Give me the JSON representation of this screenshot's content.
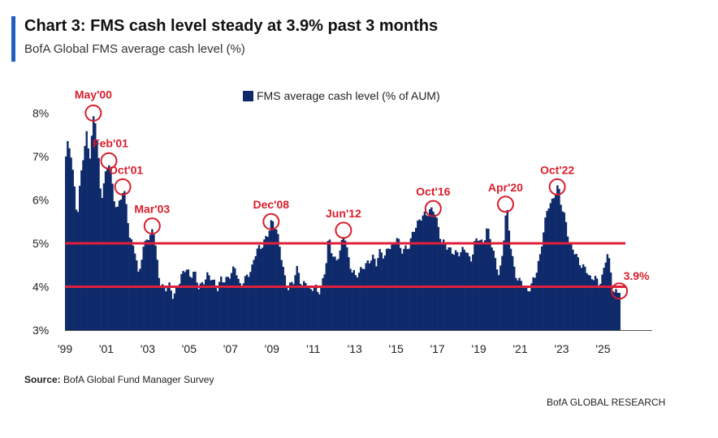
{
  "header": {
    "title": "Chart 3: FMS cash level steady at 3.9% past 3 months",
    "subtitle": "BofA Global FMS average cash level (%)"
  },
  "footer": {
    "source_label": "Source:",
    "source_text": "BofA Global Fund Manager Survey",
    "brand": "BofA GLOBAL RESEARCH"
  },
  "colors": {
    "bars": "#0f2a6b",
    "reference_lines": "#e0203a",
    "annotations": "#d81e2c",
    "accent": "#1f5fbf"
  },
  "chart_data": {
    "type": "bar",
    "title": "Chart 3: FMS cash level steady at 3.9% past 3 months",
    "subtitle": "BofA Global FMS average cash level (%)",
    "legend": {
      "label": "FMS average cash level (% of AUM)",
      "position": "top-center"
    },
    "xlabel": "",
    "ylabel": "",
    "ylim": [
      3,
      8.4
    ],
    "yticks": [
      3,
      4,
      5,
      6,
      7,
      8
    ],
    "ytick_labels": [
      "3%",
      "4%",
      "5%",
      "6%",
      "7%",
      "8%"
    ],
    "xlim": [
      1999.0,
      2026.2
    ],
    "xticks": [
      1999,
      2001,
      2003,
      2005,
      2007,
      2009,
      2011,
      2013,
      2015,
      2017,
      2019,
      2021,
      2023,
      2025
    ],
    "xtick_labels": [
      "'99",
      "'01",
      "'03",
      "'05",
      "'07",
      "'09",
      "'11",
      "'13",
      "'15",
      "'17",
      "'19",
      "'21",
      "'23",
      "'25"
    ],
    "grid": false,
    "reference_lines": [
      5.0,
      4.0
    ],
    "annotations": [
      {
        "label": "May'00",
        "x": 2000.37,
        "y": 8.0
      },
      {
        "label": "Feb'01",
        "x": 2001.12,
        "y": 6.9
      },
      {
        "label": "Oct'01",
        "x": 2001.79,
        "y": 6.3
      },
      {
        "label": "Mar'03",
        "x": 2003.21,
        "y": 5.4
      },
      {
        "label": "Dec'08",
        "x": 2008.96,
        "y": 5.5
      },
      {
        "label": "Jun'12",
        "x": 2012.46,
        "y": 5.3
      },
      {
        "label": "Oct'16",
        "x": 2016.79,
        "y": 5.8
      },
      {
        "label": "Apr'20",
        "x": 2020.29,
        "y": 5.9
      },
      {
        "label": "Oct'22",
        "x": 2022.79,
        "y": 6.3
      },
      {
        "label": "3.9%",
        "x": 2025.79,
        "y": 3.9
      }
    ],
    "series": [
      {
        "name": "FMS average cash level (% of AUM)",
        "anchors": [
          [
            1999.0,
            7.0
          ],
          [
            1999.1,
            7.3
          ],
          [
            1999.25,
            7.0
          ],
          [
            1999.4,
            6.3
          ],
          [
            1999.55,
            5.6
          ],
          [
            1999.7,
            6.5
          ],
          [
            1999.85,
            7.1
          ],
          [
            2000.0,
            7.5
          ],
          [
            2000.15,
            6.9
          ],
          [
            2000.37,
            8.0
          ],
          [
            2000.55,
            7.2
          ],
          [
            2000.7,
            6.0
          ],
          [
            2000.85,
            6.5
          ],
          [
            2001.12,
            6.9
          ],
          [
            2001.3,
            6.0
          ],
          [
            2001.5,
            5.8
          ],
          [
            2001.65,
            6.1
          ],
          [
            2001.79,
            6.3
          ],
          [
            2001.95,
            5.8
          ],
          [
            2002.1,
            5.0
          ],
          [
            2002.3,
            4.9
          ],
          [
            2002.5,
            4.3
          ],
          [
            2002.7,
            4.8
          ],
          [
            2002.9,
            5.2
          ],
          [
            2003.05,
            5.0
          ],
          [
            2003.21,
            5.4
          ],
          [
            2003.4,
            4.6
          ],
          [
            2003.55,
            4.1
          ],
          [
            2003.75,
            4.0
          ],
          [
            2004.0,
            4.0
          ],
          [
            2004.2,
            3.7
          ],
          [
            2004.4,
            4.0
          ],
          [
            2004.6,
            4.3
          ],
          [
            2004.8,
            4.5
          ],
          [
            2005.0,
            4.2
          ],
          [
            2005.2,
            4.3
          ],
          [
            2005.4,
            4.0
          ],
          [
            2005.6,
            4.1
          ],
          [
            2005.8,
            4.3
          ],
          [
            2006.0,
            4.2
          ],
          [
            2006.3,
            3.9
          ],
          [
            2006.5,
            4.2
          ],
          [
            2006.8,
            4.2
          ],
          [
            2007.0,
            4.3
          ],
          [
            2007.2,
            4.4
          ],
          [
            2007.4,
            4.0
          ],
          [
            2007.6,
            4.2
          ],
          [
            2007.8,
            4.3
          ],
          [
            2008.0,
            4.4
          ],
          [
            2008.2,
            4.8
          ],
          [
            2008.4,
            4.9
          ],
          [
            2008.6,
            5.1
          ],
          [
            2008.8,
            5.3
          ],
          [
            2008.96,
            5.5
          ],
          [
            2009.15,
            5.3
          ],
          [
            2009.35,
            4.9
          ],
          [
            2009.55,
            4.3
          ],
          [
            2009.75,
            4.0
          ],
          [
            2010.0,
            4.1
          ],
          [
            2010.2,
            4.4
          ],
          [
            2010.4,
            4.0
          ],
          [
            2010.6,
            4.2
          ],
          [
            2010.8,
            3.9
          ],
          [
            2011.0,
            4.0
          ],
          [
            2011.2,
            3.8
          ],
          [
            2011.4,
            4.1
          ],
          [
            2011.55,
            4.5
          ],
          [
            2011.7,
            5.2
          ],
          [
            2011.85,
            4.8
          ],
          [
            2012.05,
            4.5
          ],
          [
            2012.25,
            4.8
          ],
          [
            2012.46,
            5.3
          ],
          [
            2012.65,
            4.7
          ],
          [
            2012.8,
            4.4
          ],
          [
            2013.0,
            4.2
          ],
          [
            2013.2,
            4.3
          ],
          [
            2013.4,
            4.5
          ],
          [
            2013.6,
            4.6
          ],
          [
            2013.8,
            4.7
          ],
          [
            2014.0,
            4.5
          ],
          [
            2014.2,
            4.8
          ],
          [
            2014.4,
            4.7
          ],
          [
            2014.6,
            5.0
          ],
          [
            2014.8,
            4.9
          ],
          [
            2015.0,
            5.1
          ],
          [
            2015.2,
            4.8
          ],
          [
            2015.4,
            4.9
          ],
          [
            2015.6,
            5.0
          ],
          [
            2015.8,
            5.3
          ],
          [
            2016.0,
            5.4
          ],
          [
            2016.2,
            5.6
          ],
          [
            2016.4,
            5.7
          ],
          [
            2016.6,
            5.8
          ],
          [
            2016.79,
            5.8
          ],
          [
            2016.95,
            5.4
          ],
          [
            2017.15,
            5.0
          ],
          [
            2017.35,
            5.0
          ],
          [
            2017.55,
            4.9
          ],
          [
            2017.75,
            4.8
          ],
          [
            2017.95,
            4.7
          ],
          [
            2018.15,
            4.8
          ],
          [
            2018.35,
            4.9
          ],
          [
            2018.55,
            4.6
          ],
          [
            2018.75,
            5.0
          ],
          [
            2018.95,
            5.1
          ],
          [
            2019.15,
            4.9
          ],
          [
            2019.35,
            5.4
          ],
          [
            2019.55,
            5.1
          ],
          [
            2019.75,
            4.6
          ],
          [
            2019.95,
            4.2
          ],
          [
            2020.1,
            4.7
          ],
          [
            2020.29,
            5.9
          ],
          [
            2020.5,
            5.0
          ],
          [
            2020.7,
            4.3
          ],
          [
            2020.9,
            4.1
          ],
          [
            2021.1,
            4.0
          ],
          [
            2021.3,
            3.9
          ],
          [
            2021.5,
            4.1
          ],
          [
            2021.7,
            4.3
          ],
          [
            2021.9,
            4.6
          ],
          [
            2022.1,
            5.3
          ],
          [
            2022.3,
            5.9
          ],
          [
            2022.5,
            6.0
          ],
          [
            2022.65,
            6.2
          ],
          [
            2022.79,
            6.3
          ],
          [
            2022.95,
            5.8
          ],
          [
            2023.15,
            5.5
          ],
          [
            2023.35,
            5.0
          ],
          [
            2023.55,
            4.9
          ],
          [
            2023.75,
            4.6
          ],
          [
            2023.95,
            4.4
          ],
          [
            2024.15,
            4.4
          ],
          [
            2024.35,
            4.2
          ],
          [
            2024.55,
            4.3
          ],
          [
            2024.75,
            4.0
          ],
          [
            2024.95,
            4.2
          ],
          [
            2025.15,
            4.8
          ],
          [
            2025.3,
            4.5
          ],
          [
            2025.45,
            3.9
          ],
          [
            2025.6,
            3.9
          ],
          [
            2025.79,
            3.9
          ]
        ]
      }
    ]
  }
}
